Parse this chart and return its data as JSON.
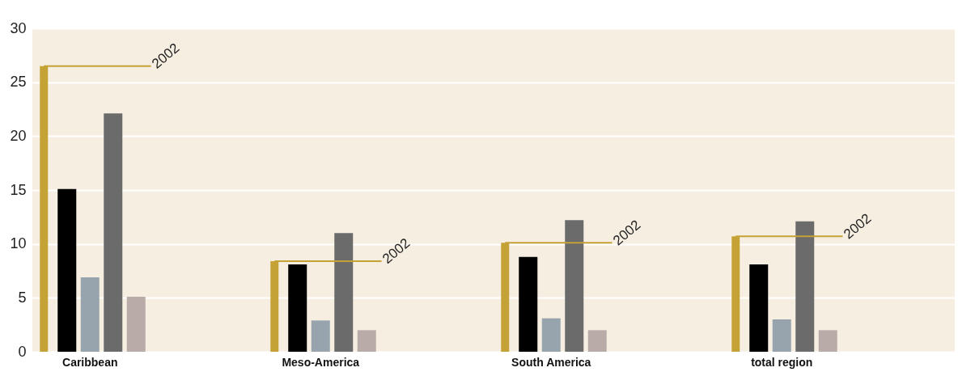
{
  "chart_data": {
    "type": "bar",
    "categories": [
      "Caribbean",
      "Meso-America",
      "South America",
      "total region"
    ],
    "series": [
      {
        "name": "2002",
        "color": "#c4a236",
        "values": [
          26.5,
          8.4,
          10.1,
          10.7
        ]
      },
      {
        "color": "#000000",
        "values": [
          15.1,
          8.1,
          8.8,
          8.1
        ]
      },
      {
        "color": "#97a4ad",
        "values": [
          6.9,
          2.9,
          3.1,
          3.0
        ]
      },
      {
        "color": "#6b6b6b",
        "values": [
          22.1,
          11.0,
          12.2,
          12.1
        ]
      },
      {
        "color": "#b9aca8",
        "values": [
          5.1,
          2.0,
          2.0,
          2.0
        ]
      }
    ],
    "ylim": [
      0,
      30
    ],
    "yticks": [
      0,
      5,
      10,
      15,
      20,
      25,
      30
    ],
    "grid": "y"
  }
}
